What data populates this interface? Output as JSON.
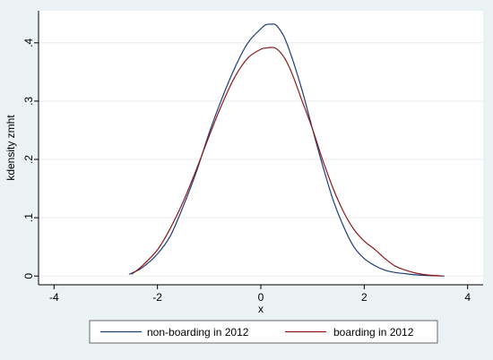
{
  "chart_data": {
    "type": "line",
    "title": "",
    "xlabel": "x",
    "ylabel": "kdensity zmht",
    "xlim": [
      -4.3,
      4.3
    ],
    "ylim": [
      -0.015,
      0.455
    ],
    "grid": true,
    "x_ticks": [
      -4,
      -2,
      0,
      2,
      4
    ],
    "x_tick_labels": [
      "-4",
      "-2",
      "0",
      "2",
      "4"
    ],
    "y_ticks": [
      0,
      0.1,
      0.2,
      0.3,
      0.4
    ],
    "y_tick_labels": [
      "0",
      ".1",
      ".2",
      ".3",
      ".4"
    ],
    "legend_position": "bottom",
    "series": [
      {
        "name": "non-boarding in 2012",
        "color": "#1f3d73",
        "x": [
          -2.55,
          -2.3,
          -2.0,
          -1.75,
          -1.5,
          -1.25,
          -1.0,
          -0.75,
          -0.5,
          -0.25,
          0.0,
          0.1,
          0.2,
          0.3,
          0.45,
          0.6,
          0.8,
          1.0,
          1.2,
          1.4,
          1.6,
          1.8,
          2.0,
          2.2,
          2.4,
          2.6,
          2.8,
          3.0,
          3.2,
          3.55
        ],
        "y": [
          0.003,
          0.014,
          0.038,
          0.069,
          0.12,
          0.178,
          0.245,
          0.305,
          0.358,
          0.4,
          0.424,
          0.431,
          0.432,
          0.43,
          0.41,
          0.375,
          0.318,
          0.252,
          0.188,
          0.13,
          0.085,
          0.05,
          0.03,
          0.018,
          0.01,
          0.006,
          0.004,
          0.002,
          0.001,
          0.0
        ]
      },
      {
        "name": "boarding in 2012",
        "color": "#8b1a1a",
        "x": [
          -2.5,
          -2.3,
          -2.0,
          -1.75,
          -1.5,
          -1.25,
          -1.0,
          -0.75,
          -0.5,
          -0.25,
          0.0,
          0.1,
          0.2,
          0.3,
          0.45,
          0.6,
          0.8,
          1.0,
          1.2,
          1.4,
          1.6,
          1.8,
          2.0,
          2.2,
          2.4,
          2.6,
          2.8,
          3.0,
          3.2,
          3.5
        ],
        "y": [
          0.003,
          0.017,
          0.045,
          0.082,
          0.128,
          0.182,
          0.24,
          0.295,
          0.342,
          0.374,
          0.389,
          0.391,
          0.392,
          0.39,
          0.375,
          0.348,
          0.3,
          0.252,
          0.198,
          0.15,
          0.11,
          0.08,
          0.06,
          0.046,
          0.03,
          0.017,
          0.01,
          0.005,
          0.002,
          0.0
        ]
      }
    ]
  }
}
